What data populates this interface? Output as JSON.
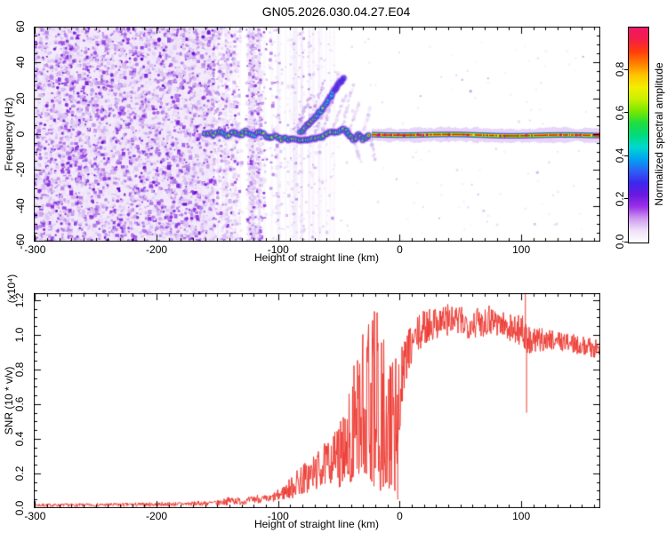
{
  "title": "GN05.2026.030.04.27.E04",
  "chart_data": [
    {
      "type": "heatmap",
      "name": "radar-spectrogram",
      "xlabel": "Height of straight line (km)",
      "ylabel": "Frequency (Hz)",
      "xlim": [
        -301,
        165
      ],
      "ylim": [
        -60,
        60
      ],
      "xticks": [
        -300,
        -200,
        -100,
        0,
        100
      ],
      "yticks": [
        -60,
        -40,
        -20,
        0,
        20,
        40,
        60
      ],
      "x_minor_step": 10,
      "y_minor_step": 5,
      "colorbar": {
        "label": "Normalized spectral amplitude",
        "ticks": [
          0,
          0.2,
          0.4,
          0.6,
          0.8
        ],
        "lim": [
          0,
          1
        ],
        "gradient": [
          "#ffffff",
          "#efe0fa",
          "#cf9af0",
          "#9b30e8",
          "#6a18e0",
          "#3c28ee",
          "#2b62f5",
          "#00a4f0",
          "#00d8cf",
          "#00dc7a",
          "#20dd3e",
          "#7ae800",
          "#c8f000",
          "#f2ee00",
          "#ffc400",
          "#ff7e00",
          "#ff3c0c",
          "#f51d48",
          "#ec1866"
        ]
      },
      "noise_regions": [
        {
          "km": [
            -301,
            -152
          ],
          "count": 5200,
          "r": [
            0.9,
            2.3
          ],
          "wash": "#f3ebfb",
          "pal": [
            [
              "#efe2fa",
              0.36
            ],
            [
              "#d9bdf3",
              0.27
            ],
            [
              "#b27ae6",
              0.2
            ],
            [
              "#8a2be2",
              0.11
            ],
            [
              "#6a0fd0",
              0.06
            ]
          ]
        },
        {
          "km": [
            -152,
            -100
          ],
          "count": 1500,
          "streaks": 34,
          "r": [
            0.9,
            2.0
          ],
          "pal": [
            [
              "#f0e4fa",
              0.45
            ],
            [
              "#dcc2f4",
              0.3
            ],
            [
              "#b684e8",
              0.18
            ],
            [
              "#8a2be2",
              0.07
            ]
          ]
        },
        {
          "km": [
            -100,
            -52
          ],
          "count": 380,
          "streaks": 22,
          "r": [
            0.8,
            1.8
          ],
          "pal": [
            [
              "#f2e8fb",
              0.55
            ],
            [
              "#e0caf5",
              0.3
            ],
            [
              "#bd8fea",
              0.15
            ]
          ]
        },
        {
          "km": [
            -52,
            165
          ],
          "count": 120,
          "r": [
            0.8,
            1.5
          ],
          "pal": [
            [
              "#f4ecfc",
              0.6
            ],
            [
              "#e4d2f6",
              0.3
            ],
            [
              "#c9a2ee",
              0.1
            ]
          ]
        }
      ],
      "trace": [
        [
          -160,
          0,
          0.75
        ],
        [
          -157,
          1,
          0.8
        ],
        [
          -154,
          -0.5,
          0.85
        ],
        [
          -151,
          0.5,
          0.8
        ],
        [
          -148,
          1.5,
          0.8
        ],
        [
          -145,
          0,
          0.85
        ],
        [
          -142,
          -1,
          0.8
        ],
        [
          -139,
          0.5,
          0.85
        ],
        [
          -136,
          1,
          0.8
        ],
        [
          -133,
          -0.5,
          0.85
        ],
        [
          -130,
          0,
          0.9
        ],
        [
          -127,
          1.5,
          0.8
        ],
        [
          -124,
          0.5,
          0.85
        ],
        [
          -121,
          -1,
          0.8
        ],
        [
          -118,
          0,
          0.85
        ],
        [
          -115,
          1,
          0.8
        ],
        [
          -112,
          0,
          0.85
        ],
        [
          -109,
          -1.5,
          0.8
        ],
        [
          -106,
          -2,
          0.85
        ],
        [
          -103,
          -1,
          0.8
        ],
        [
          -100,
          -2,
          0.85
        ],
        [
          -97,
          -3,
          0.85
        ],
        [
          -94,
          -2.5,
          0.9
        ],
        [
          -91,
          -3.5,
          0.85
        ],
        [
          -88,
          -2.5,
          0.9
        ],
        [
          -85,
          -3,
          0.9
        ],
        [
          -82,
          -3.5,
          0.9
        ],
        [
          -79,
          -3,
          0.9
        ],
        [
          -76,
          -3.5,
          0.9
        ],
        [
          -73,
          -3,
          0.9
        ],
        [
          -70,
          -2.5,
          0.9
        ],
        [
          -67,
          -2,
          0.9
        ],
        [
          -64,
          -1.5,
          0.9
        ],
        [
          -61,
          -0.5,
          0.9
        ],
        [
          -58,
          0.5,
          0.9
        ],
        [
          -55,
          1,
          0.9
        ],
        [
          -52,
          1.5,
          0.9
        ],
        [
          -49,
          2,
          0.9
        ],
        [
          -46,
          2.5,
          0.85
        ],
        [
          -44,
          1.5,
          0.9
        ],
        [
          -42,
          0,
          0.85
        ],
        [
          -40,
          -1.5,
          0.9
        ],
        [
          -38,
          -3,
          0.85
        ],
        [
          -36,
          -2,
          0.9
        ],
        [
          -34,
          -0.5,
          0.9
        ],
        [
          -32,
          -1.5,
          0.85
        ],
        [
          -30,
          -3,
          0.9
        ],
        [
          -28,
          -2,
          0.9
        ],
        [
          -26,
          -1,
          0.9
        ],
        [
          -24,
          -0.5,
          0.95
        ]
      ],
      "branch": [
        [
          -82,
          1,
          0.95
        ],
        [
          -77,
          4,
          0.9
        ],
        [
          -73,
          7,
          0.85
        ],
        [
          -69,
          10,
          0.8
        ],
        [
          -65,
          13,
          0.75
        ],
        [
          -61,
          17,
          0.6
        ],
        [
          -57,
          21,
          0.5
        ],
        [
          -53,
          25,
          0.4
        ],
        [
          -49,
          29,
          0.3
        ],
        [
          -45,
          32,
          0.2
        ]
      ],
      "streaks": [
        [
          -85,
          2,
          -73,
          22,
          0.5
        ],
        [
          -78,
          1,
          -62,
          30,
          0.45
        ],
        [
          -70,
          0,
          -55,
          26,
          0.4
        ],
        [
          -63,
          2,
          -50,
          34,
          0.35
        ],
        [
          -57,
          0,
          -44,
          22,
          0.3
        ],
        [
          -48,
          3,
          -38,
          28,
          0.3
        ],
        [
          -42,
          0,
          -34,
          18,
          0.25
        ],
        [
          -30,
          2,
          -24,
          14,
          0.2
        ],
        [
          -38,
          -2,
          -32,
          -16,
          0.3
        ],
        [
          -24,
          -1,
          -20,
          -15,
          0.35
        ]
      ],
      "band": {
        "start_km": -23,
        "freq": -0.5,
        "core_color": "#f32300"
      }
    },
    {
      "type": "line",
      "name": "snr-profile",
      "xlabel": "Height of straight line (km)",
      "ylabel": "SNR (10 * v/v)",
      "scale_label": "(x10⁴)",
      "xlim": [
        -301,
        165
      ],
      "ylim": [
        0,
        1.24
      ],
      "xticks": [
        -300,
        -200,
        -100,
        0,
        100
      ],
      "yticks": [
        0,
        0.2,
        0.4,
        0.6,
        0.8,
        1,
        1.2
      ],
      "x_minor_step": 10,
      "y_minor_step": 0.05,
      "line_color": "#ee3b33",
      "envelope": [
        [
          -301,
          0.005,
          0.03
        ],
        [
          -260,
          0.005,
          0.03
        ],
        [
          -220,
          0.005,
          0.035
        ],
        [
          -180,
          0.008,
          0.04
        ],
        [
          -150,
          0.01,
          0.05
        ],
        [
          -138,
          0.01,
          0.08
        ],
        [
          -128,
          0.015,
          0.06
        ],
        [
          -118,
          0.02,
          0.09
        ],
        [
          -108,
          0.02,
          0.08
        ],
        [
          -98,
          0.03,
          0.13
        ],
        [
          -90,
          0.03,
          0.2
        ],
        [
          -82,
          0.04,
          0.28
        ],
        [
          -74,
          0.05,
          0.32
        ],
        [
          -66,
          0.07,
          0.38
        ],
        [
          -58,
          0.09,
          0.45
        ],
        [
          -50,
          0.12,
          0.52
        ],
        [
          -44,
          0.14,
          0.62
        ],
        [
          -38,
          0.16,
          0.85
        ],
        [
          -32,
          0.18,
          1.0
        ],
        [
          -27,
          0.2,
          1.05
        ],
        [
          -23,
          0.15,
          1.12
        ],
        [
          -19,
          0.1,
          1.16
        ],
        [
          -15,
          0.1,
          1.0
        ],
        [
          -11,
          0.15,
          1.06
        ],
        [
          -8,
          0.1,
          1.1
        ],
        [
          -5,
          0.05,
          1.0
        ],
        [
          -3,
          0.1,
          0.9
        ],
        [
          -1,
          0.4,
          0.95
        ],
        [
          2,
          0.55,
          1.0
        ],
        [
          6,
          0.7,
          1.06
        ],
        [
          12,
          0.82,
          1.12
        ],
        [
          20,
          0.9,
          1.18
        ],
        [
          28,
          0.94,
          1.2
        ],
        [
          36,
          0.96,
          1.22
        ],
        [
          46,
          0.96,
          1.2
        ],
        [
          56,
          0.95,
          1.18
        ],
        [
          66,
          0.95,
          1.2
        ],
        [
          76,
          0.97,
          1.22
        ],
        [
          86,
          0.95,
          1.16
        ],
        [
          96,
          0.92,
          1.14
        ],
        [
          101,
          0.9,
          1.18
        ],
        [
          104,
          0.8,
          1.1
        ],
        [
          108,
          0.86,
          1.06
        ],
        [
          118,
          0.88,
          1.06
        ],
        [
          128,
          0.9,
          1.05
        ],
        [
          138,
          0.88,
          1.03
        ],
        [
          148,
          0.87,
          1.01
        ],
        [
          158,
          0.85,
          1.0
        ],
        [
          165,
          0.84,
          0.98
        ]
      ],
      "spikes": [
        [
          -2,
          0.05
        ],
        [
          103,
          1.26
        ],
        [
          104,
          0.55
        ]
      ]
    }
  ]
}
